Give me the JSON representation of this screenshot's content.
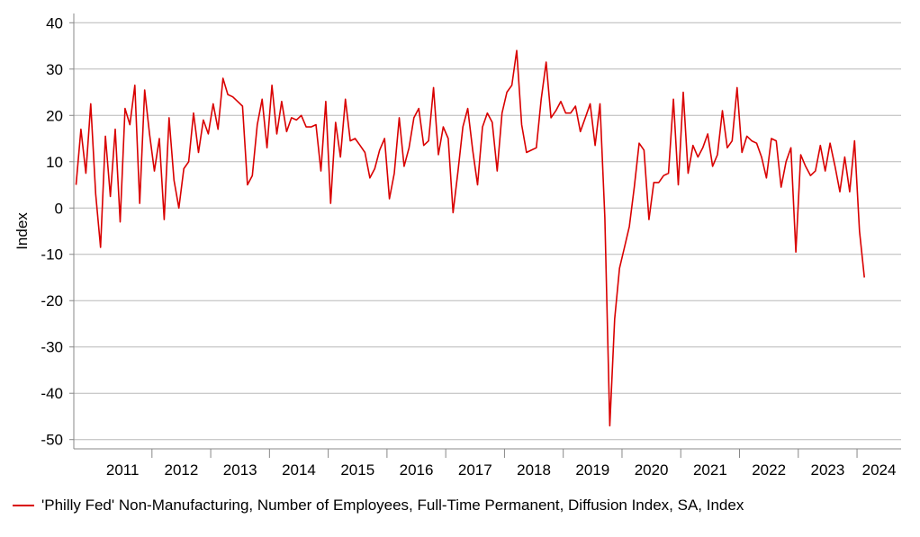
{
  "chart_data": {
    "type": "line",
    "title": "",
    "xlabel": "",
    "ylabel": "Index",
    "ylim": [
      -52,
      42
    ],
    "yticks": [
      40,
      30,
      20,
      10,
      0,
      -10,
      -20,
      -30,
      -40,
      -50
    ],
    "ytick_labels": [
      "40",
      "30",
      "20",
      "10",
      "0",
      "-10",
      "-20",
      "-30",
      "-40",
      "-50"
    ],
    "xlim": [
      2010.67,
      2024.75
    ],
    "year_labels": [
      "2011",
      "2012",
      "2013",
      "2014",
      "2015",
      "2016",
      "2017",
      "2018",
      "2019",
      "2020",
      "2021",
      "2022",
      "2023",
      "2024"
    ],
    "grid": true,
    "legend_position": "bottom-left",
    "color": "#d90000",
    "series": [
      {
        "name": "'Philly Fed' Non-Manufacturing, Number of Employees, Full-Time Permanent, Diffusion Index, SA, Index",
        "start": "2010-09",
        "frequency": "monthly",
        "values": [
          5,
          17,
          7.5,
          22.5,
          3,
          -8.5,
          15.5,
          2.5,
          17,
          -3,
          21.5,
          18,
          26.5,
          1,
          25.5,
          16,
          8,
          15,
          -2.5,
          19.5,
          6,
          0,
          8.5,
          10,
          20.5,
          12,
          19,
          16,
          22.5,
          17,
          28,
          24.5,
          24,
          23,
          22,
          5,
          7,
          18,
          23.5,
          13,
          26.5,
          16,
          23,
          16.5,
          19.5,
          19,
          20,
          17.5,
          17.5,
          18,
          8,
          23,
          1,
          18.5,
          11,
          23.5,
          14.5,
          15,
          13.5,
          12,
          6.5,
          8.5,
          12.5,
          15,
          2,
          7.5,
          19.5,
          9,
          13,
          19.5,
          21.5,
          13.5,
          14.5,
          26,
          11.5,
          17.5,
          15,
          -1,
          8,
          17.5,
          21.5,
          12.5,
          5,
          17.5,
          20.5,
          18.5,
          8,
          20.5,
          25,
          26.5,
          34,
          18,
          12,
          12.5,
          13,
          23.5,
          31.5,
          19.5,
          21,
          23,
          20.5,
          20.5,
          22,
          16.5,
          19.5,
          22.5,
          13.5,
          22.5,
          -2,
          -47,
          -24,
          -13,
          -8.5,
          -4,
          4.5,
          14,
          12.5,
          -2.5,
          5.5,
          5.5,
          7,
          7.5,
          23.5,
          5,
          25,
          7.5,
          13.5,
          11,
          13,
          16,
          9,
          11.5,
          21,
          13,
          14.5,
          26,
          12,
          15.5,
          14.5,
          14,
          11,
          6.5,
          15,
          14.5,
          4.5,
          10,
          13,
          -9.5,
          11.5,
          9,
          7,
          8,
          13.5,
          8,
          14,
          9,
          3.5,
          11,
          3.5,
          14.5,
          -5,
          -15
        ]
      }
    ]
  }
}
